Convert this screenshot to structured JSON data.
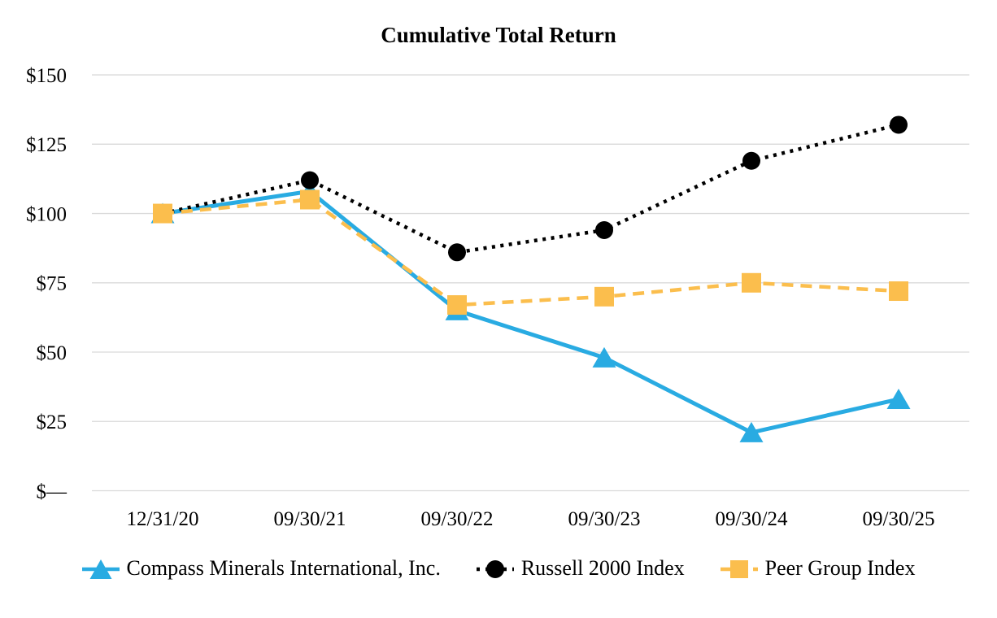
{
  "chart_data": {
    "type": "line",
    "title": "Cumulative Total Return",
    "categories": [
      "12/31/20",
      "09/30/21",
      "09/30/22",
      "09/30/23",
      "09/30/24",
      "09/30/25"
    ],
    "series": [
      {
        "name": "Compass Minerals International, Inc.",
        "values": [
          100,
          108,
          65,
          48,
          21,
          33
        ],
        "color": "#29ABE2",
        "line_style": "solid",
        "marker": "triangle"
      },
      {
        "name": "Russell 2000 Index",
        "values": [
          100,
          112,
          86,
          94,
          119,
          132
        ],
        "color": "#000000",
        "line_style": "dotted",
        "marker": "circle"
      },
      {
        "name": "Peer Group Index",
        "values": [
          100,
          105,
          67,
          70,
          75,
          72
        ],
        "color": "#FBBE4D",
        "line_style": "dashed",
        "marker": "square"
      }
    ],
    "y_axis": {
      "tick_labels": [
        "$—",
        "$25",
        "$50",
        "$75",
        "$100",
        "$125",
        "$150"
      ],
      "tick_values": [
        0,
        25,
        50,
        75,
        100,
        125,
        150
      ],
      "min": 0,
      "max": 150
    },
    "grid": "horizontal-gridlines-on",
    "gridline_color": "#D9D9D9",
    "text_color": "#000000",
    "background_color": "#FFFFFF",
    "legend_position": "bottom"
  }
}
